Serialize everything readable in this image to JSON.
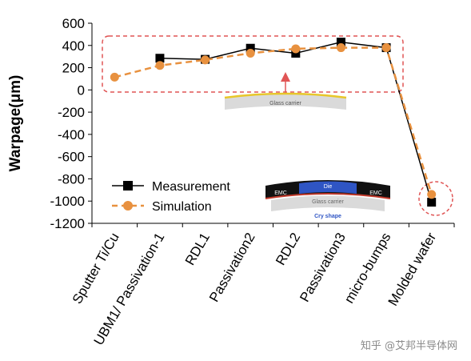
{
  "chart_data": {
    "type": "line",
    "title": "",
    "xlabel": "",
    "ylabel": "Warpage(μm)",
    "ylim": [
      -1200,
      600
    ],
    "yticks": [
      600,
      400,
      200,
      0,
      -200,
      -400,
      -600,
      -800,
      -1000,
      -1200
    ],
    "categories": [
      "Sputter Ti/Cu",
      "UBM1/ Passivation-1",
      "RDL1",
      "Passivation2",
      "RDL2",
      "Passivation3",
      "micro-bumps",
      "Molded wafer"
    ],
    "grid": false,
    "legend_position": "bottom-left",
    "series": [
      {
        "name": "Measurement",
        "color": "#000000",
        "marker": "square",
        "line": "solid",
        "values": [
          null,
          285,
          275,
          375,
          330,
          430,
          380,
          -1010
        ]
      },
      {
        "name": "Simulation",
        "color": "#E8913F",
        "marker": "circle",
        "line": "dashed",
        "values": [
          115,
          220,
          270,
          330,
          370,
          380,
          380,
          -940
        ]
      }
    ],
    "annotations": {
      "inset_top": {
        "label": "Glass carrier",
        "colors": {
          "layer": "#E8C72A",
          "carrier": "#DADADA"
        }
      },
      "inset_bottom": {
        "die_label": "Die",
        "emc_left": "EMC",
        "emc_right": "EMC",
        "carrier_label": "Glass carrier",
        "caption": "Cry shape",
        "colors": {
          "emc": "#111111",
          "die": "#2F55C4",
          "layer": "#C0392B",
          "carrier": "#DADADA",
          "caption": "#2F55C4"
        }
      },
      "highlight_color": "#E05555"
    }
  },
  "watermark": "知乎 @艾邦半导体网"
}
